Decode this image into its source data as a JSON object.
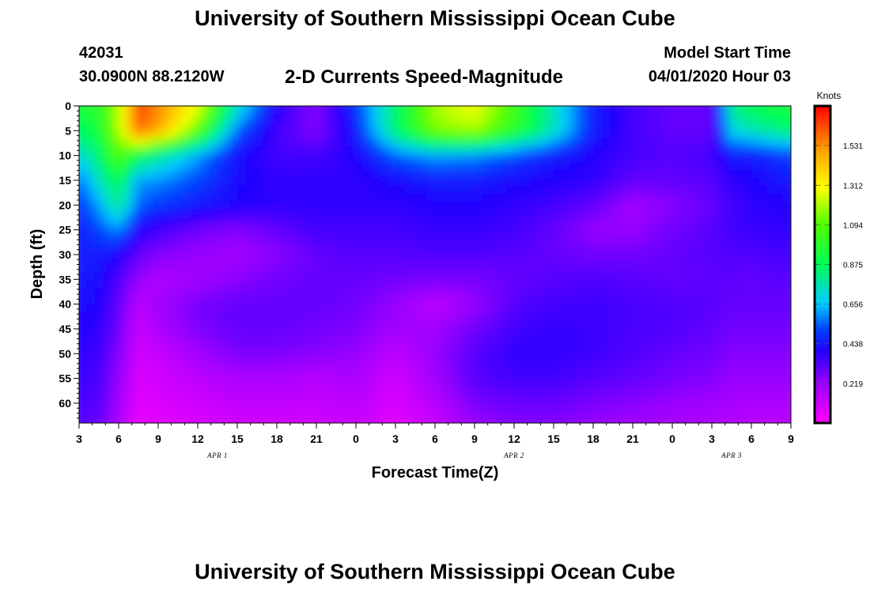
{
  "header": {
    "title": "University of Southern Mississippi Ocean Cube",
    "station_id": "42031",
    "location": "30.0900N 88.2120W",
    "subtitle": "2-D Currents Speed-Magnitude",
    "model_start_label": "Model Start Time",
    "model_start_value": "04/01/2020 Hour 03"
  },
  "footer": {
    "title": "University of Southern Mississippi Ocean Cube"
  },
  "chart_data": {
    "type": "heatmap",
    "title": "2-D Currents Speed-Magnitude",
    "xlabel": "Forecast Time(Z)",
    "ylabel": "Depth (ft)",
    "x_tick_labels": [
      "3",
      "6",
      "9",
      "12",
      "15",
      "18",
      "21",
      "0",
      "3",
      "6",
      "9",
      "12",
      "15",
      "18",
      "21",
      "0",
      "3",
      "6",
      "9"
    ],
    "x_range_hours": [
      0,
      54
    ],
    "day_labels": [
      {
        "text": "APR 1",
        "hour": 10.5
      },
      {
        "text": "APR 2",
        "hour": 33
      },
      {
        "text": "APR 3",
        "hour": 49.5
      }
    ],
    "y_tick_labels": [
      "0",
      "5",
      "10",
      "15",
      "20",
      "25",
      "30",
      "35",
      "40",
      "45",
      "50",
      "55",
      "60"
    ],
    "y_range": [
      0,
      64
    ],
    "y_inverted": true,
    "colorbar": {
      "unit": "Knots",
      "range": [
        0,
        1.75
      ],
      "tick_values": [
        0.219,
        0.438,
        0.656,
        0.875,
        1.094,
        1.312,
        1.531
      ],
      "tick_labels": [
        "0.219",
        "0.438",
        "0.656",
        "0.875",
        "1.094",
        "1.312",
        "1.531"
      ],
      "colormap": [
        {
          "v": 0.0,
          "color": "#ff00ff"
        },
        {
          "v": 0.22,
          "color": "#9900ff"
        },
        {
          "v": 0.4,
          "color": "#2200ff"
        },
        {
          "v": 0.52,
          "color": "#0044ff"
        },
        {
          "v": 0.66,
          "color": "#00ccff"
        },
        {
          "v": 0.88,
          "color": "#00ff55"
        },
        {
          "v": 1.1,
          "color": "#55ff00"
        },
        {
          "v": 1.3,
          "color": "#ffff00"
        },
        {
          "v": 1.5,
          "color": "#ffa500"
        },
        {
          "v": 1.75,
          "color": "#ff0000"
        }
      ]
    },
    "grid_hours": [
      0,
      1.5,
      3,
      4.5,
      6,
      9,
      12,
      15,
      18,
      21,
      24,
      27,
      30,
      33,
      36,
      39,
      42,
      45,
      48,
      49.5,
      51,
      54
    ],
    "grid_depths": [
      0,
      5,
      10,
      15,
      20,
      25,
      30,
      35,
      40,
      45,
      50,
      55,
      64
    ],
    "values": [
      [
        0.95,
        1.0,
        1.2,
        1.65,
        1.55,
        1.3,
        0.75,
        0.4,
        0.25,
        0.5,
        0.85,
        1.2,
        1.3,
        1.05,
        0.75,
        0.45,
        0.35,
        0.3,
        0.3,
        0.8,
        0.9,
        0.95
      ],
      [
        0.85,
        0.95,
        1.2,
        1.6,
        1.5,
        1.1,
        0.55,
        0.35,
        0.25,
        0.45,
        0.85,
        1.15,
        1.2,
        1.0,
        0.75,
        0.45,
        0.35,
        0.3,
        0.3,
        0.7,
        0.75,
        0.85
      ],
      [
        0.7,
        0.85,
        1.1,
        0.9,
        0.8,
        0.62,
        0.42,
        0.35,
        0.35,
        0.4,
        0.55,
        0.62,
        0.6,
        0.52,
        0.45,
        0.4,
        0.35,
        0.32,
        0.35,
        0.45,
        0.45,
        0.5
      ],
      [
        0.55,
        0.75,
        0.9,
        0.62,
        0.6,
        0.52,
        0.42,
        0.38,
        0.38,
        0.38,
        0.42,
        0.45,
        0.45,
        0.42,
        0.4,
        0.38,
        0.3,
        0.3,
        0.32,
        0.38,
        0.4,
        0.45
      ],
      [
        0.48,
        0.62,
        0.82,
        0.55,
        0.5,
        0.45,
        0.4,
        0.38,
        0.38,
        0.38,
        0.38,
        0.4,
        0.4,
        0.38,
        0.35,
        0.3,
        0.2,
        0.25,
        0.3,
        0.35,
        0.38,
        0.4
      ],
      [
        0.45,
        0.52,
        0.6,
        0.4,
        0.35,
        0.28,
        0.25,
        0.3,
        0.35,
        0.35,
        0.35,
        0.37,
        0.37,
        0.35,
        0.3,
        0.22,
        0.22,
        0.28,
        0.32,
        0.35,
        0.37,
        0.38
      ],
      [
        0.45,
        0.45,
        0.4,
        0.3,
        0.25,
        0.22,
        0.2,
        0.24,
        0.3,
        0.32,
        0.32,
        0.33,
        0.33,
        0.32,
        0.3,
        0.28,
        0.28,
        0.3,
        0.32,
        0.33,
        0.33,
        0.35
      ],
      [
        0.45,
        0.42,
        0.33,
        0.22,
        0.17,
        0.2,
        0.24,
        0.28,
        0.3,
        0.3,
        0.28,
        0.27,
        0.27,
        0.3,
        0.32,
        0.33,
        0.32,
        0.3,
        0.31,
        0.31,
        0.3,
        0.32
      ],
      [
        0.42,
        0.4,
        0.3,
        0.15,
        0.2,
        0.27,
        0.3,
        0.3,
        0.3,
        0.28,
        0.22,
        0.14,
        0.22,
        0.32,
        0.35,
        0.36,
        0.34,
        0.33,
        0.32,
        0.3,
        0.3,
        0.3
      ],
      [
        0.4,
        0.38,
        0.28,
        0.12,
        0.18,
        0.26,
        0.3,
        0.3,
        0.28,
        0.26,
        0.2,
        0.2,
        0.28,
        0.35,
        0.38,
        0.36,
        0.34,
        0.33,
        0.3,
        0.28,
        0.28,
        0.28
      ],
      [
        0.38,
        0.36,
        0.25,
        0.1,
        0.12,
        0.2,
        0.26,
        0.26,
        0.24,
        0.22,
        0.14,
        0.22,
        0.32,
        0.38,
        0.38,
        0.36,
        0.33,
        0.3,
        0.28,
        0.25,
        0.25,
        0.25
      ],
      [
        0.36,
        0.34,
        0.22,
        0.08,
        0.1,
        0.14,
        0.18,
        0.18,
        0.16,
        0.18,
        0.1,
        0.2,
        0.32,
        0.35,
        0.35,
        0.32,
        0.3,
        0.27,
        0.25,
        0.22,
        0.22,
        0.22
      ],
      [
        0.32,
        0.3,
        0.18,
        0.05,
        0.06,
        0.08,
        0.1,
        0.1,
        0.1,
        0.12,
        0.06,
        0.12,
        0.22,
        0.25,
        0.25,
        0.22,
        0.2,
        0.18,
        0.17,
        0.16,
        0.15,
        0.15
      ]
    ]
  }
}
